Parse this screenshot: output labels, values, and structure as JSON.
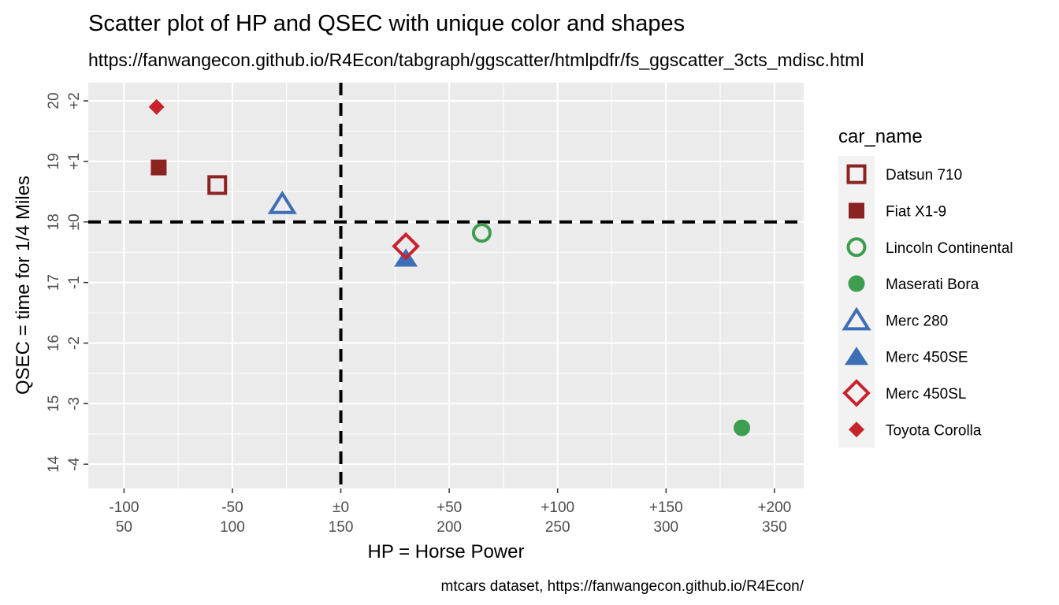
{
  "chart_data": {
    "type": "scatter",
    "title": "Scatter plot of HP and QSEC with unique color and shapes",
    "subtitle": "https://fanwangecon.github.io/R4Econ/tabgraph/ggscatter/htmlpdfr/fs_ggscatter_3cts_mdisc.html",
    "caption": "mtcars dataset, https://fanwangecon.github.io/R4Econ/",
    "xlabel": "HP = Horse Power",
    "ylabel": "QSEC = time for 1/4 Miles",
    "xlim": [
      33.5,
      363.5
    ],
    "ylim": [
      13.6,
      20.3
    ],
    "x_ticks": [
      {
        "value": 50,
        "top": "-100",
        "bottom": "50"
      },
      {
        "value": 100,
        "top": "-50",
        "bottom": "100"
      },
      {
        "value": 150,
        "top": "±0",
        "bottom": "150"
      },
      {
        "value": 200,
        "top": "+50",
        "bottom": "200"
      },
      {
        "value": 250,
        "top": "+100",
        "bottom": "250"
      },
      {
        "value": 300,
        "top": "+150",
        "bottom": "300"
      },
      {
        "value": 350,
        "top": "+200",
        "bottom": "350"
      }
    ],
    "y_ticks": [
      {
        "value": 14,
        "outer": "14",
        "inner": "-4"
      },
      {
        "value": 15,
        "outer": "15",
        "inner": "-3"
      },
      {
        "value": 16,
        "outer": "16",
        "inner": "-2"
      },
      {
        "value": 17,
        "outer": "17",
        "inner": "-1"
      },
      {
        "value": 18,
        "outer": "18",
        "inner": "±0"
      },
      {
        "value": 19,
        "outer": "19",
        "inner": "+1"
      },
      {
        "value": 20,
        "outer": "20",
        "inner": "+2"
      }
    ],
    "reference_lines": {
      "x": 150,
      "y": 18
    },
    "grid": true,
    "legend": {
      "title": "car_name",
      "placement": "right"
    },
    "series": [
      {
        "name": "Datsun 710",
        "x": 93,
        "y": 18.61,
        "shape": "square-open",
        "color": "#8b2323"
      },
      {
        "name": "Fiat X1-9",
        "x": 66,
        "y": 18.9,
        "shape": "square-filled",
        "color": "#8b2323"
      },
      {
        "name": "Lincoln Continental",
        "x": 215,
        "y": 17.82,
        "shape": "circle-open",
        "color": "#3d9e4f"
      },
      {
        "name": "Maserati Bora",
        "x": 335,
        "y": 14.6,
        "shape": "circle-filled",
        "color": "#3d9e4f"
      },
      {
        "name": "Merc 280",
        "x": 123,
        "y": 18.3,
        "shape": "triangle-open",
        "color": "#3d6fb6"
      },
      {
        "name": "Merc 450SE",
        "x": 180,
        "y": 17.4,
        "shape": "triangle-filled",
        "color": "#3d6fb6"
      },
      {
        "name": "Merc 450SL",
        "x": 180,
        "y": 17.6,
        "shape": "diamond-open",
        "color": "#c8232c"
      },
      {
        "name": "Toyota Corolla",
        "x": 65,
        "y": 19.9,
        "shape": "diamond-filled",
        "color": "#c8232c"
      }
    ]
  }
}
